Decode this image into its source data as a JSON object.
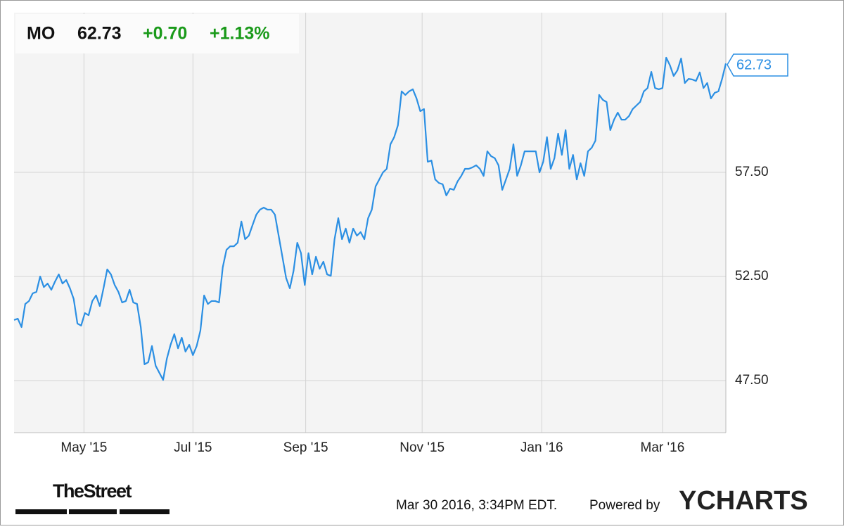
{
  "chart_data": {
    "type": "line",
    "quote": {
      "symbol": "MO",
      "price": "62.73",
      "change": "+0.70",
      "change_pct": "+1.13%"
    },
    "last_label": "62.73",
    "timestamp": "Mar 30 2016, 3:34PM EDT.",
    "powered_by": "Powered by",
    "brand": "YCHARTS",
    "source_logo": "TheStreet",
    "xlim": [
      0,
      191
    ],
    "xticks": [
      {
        "value": 18.75,
        "label": "May '15"
      },
      {
        "value": 48,
        "label": "Jul '15"
      },
      {
        "value": 78.25,
        "label": "Sep '15"
      },
      {
        "value": 109.5,
        "label": "Nov '15"
      },
      {
        "value": 141.6,
        "label": "Jan '16"
      },
      {
        "value": 174,
        "label": "Mar '16"
      }
    ],
    "ylim": [
      45,
      65.17
    ],
    "yticks": [
      {
        "value": 47.5,
        "label": "47.50"
      },
      {
        "value": 52.5,
        "label": "52.50"
      },
      {
        "value": 57.5,
        "label": "57.50"
      }
    ],
    "grid": true,
    "series": [
      {
        "name": "MO",
        "color": "#2b8fe3",
        "values": [
          50.41,
          50.47,
          50.07,
          51.18,
          51.32,
          51.69,
          51.76,
          52.5,
          51.99,
          52.16,
          51.86,
          52.26,
          52.6,
          52.16,
          52.33,
          51.93,
          51.42,
          50.24,
          50.14,
          50.74,
          50.64,
          51.32,
          51.59,
          51.08,
          51.93,
          52.84,
          52.6,
          52.09,
          51.76,
          51.25,
          51.32,
          51.86,
          51.25,
          51.18,
          50.07,
          48.28,
          48.38,
          49.16,
          48.21,
          47.87,
          47.53,
          48.55,
          49.22,
          49.73,
          49.05,
          49.56,
          48.89,
          49.22,
          48.72,
          49.16,
          49.9,
          51.59,
          51.18,
          51.32,
          51.32,
          51.25,
          52.94,
          53.78,
          53.95,
          53.95,
          54.12,
          55.14,
          54.29,
          54.46,
          54.97,
          55.47,
          55.71,
          55.81,
          55.71,
          55.71,
          55.47,
          54.46,
          53.45,
          52.43,
          51.93,
          52.77,
          54.12,
          53.62,
          52.09,
          53.62,
          52.6,
          53.45,
          52.87,
          53.21,
          52.6,
          52.53,
          54.29,
          55.3,
          54.29,
          54.8,
          54.12,
          54.8,
          54.46,
          54.63,
          54.29,
          55.3,
          55.71,
          56.82,
          57.16,
          57.5,
          57.67,
          58.85,
          59.19,
          59.76,
          61.39,
          61.22,
          61.39,
          61.49,
          61.05,
          60.44,
          60.54,
          58.01,
          58.07,
          57.16,
          56.99,
          56.93,
          56.39,
          56.72,
          56.66,
          57.06,
          57.33,
          57.67,
          57.67,
          57.74,
          57.84,
          57.67,
          57.33,
          58.51,
          58.28,
          58.18,
          57.84,
          56.66,
          57.16,
          57.67,
          58.85,
          57.33,
          57.84,
          58.51,
          58.51,
          58.51,
          58.51,
          57.5,
          58.01,
          59.19,
          57.67,
          58.18,
          59.36,
          58.34,
          59.53,
          57.67,
          58.34,
          57.16,
          57.94,
          57.33,
          58.51,
          58.68,
          59.02,
          61.22,
          60.98,
          60.88,
          59.53,
          60.03,
          60.37,
          60.03,
          60.03,
          60.2,
          60.54,
          60.71,
          60.88,
          61.39,
          61.55,
          62.33,
          61.55,
          61.49,
          61.55,
          63.01,
          62.64,
          62.13,
          62.4,
          62.97,
          61.79,
          61.99,
          61.96,
          61.89,
          62.3,
          61.55,
          61.79,
          61.05,
          61.32,
          61.39,
          61.99,
          62.73
        ]
      }
    ]
  }
}
